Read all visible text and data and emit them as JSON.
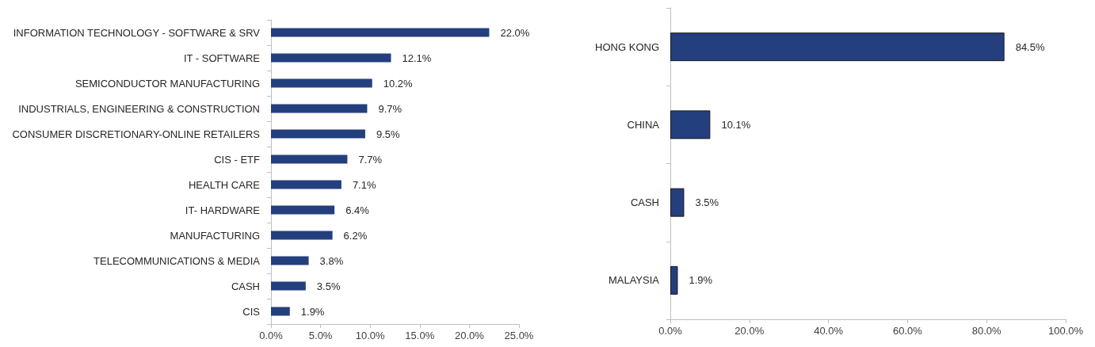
{
  "chart_data": [
    {
      "type": "bar",
      "orientation": "horizontal",
      "categories": [
        "INFORMATION TECHNOLOGY - SOFTWARE & SRV",
        "IT - SOFTWARE",
        "SEMICONDUCTOR MANUFACTURING",
        "INDUSTRIALS, ENGINEERING & CONSTRUCTION",
        "CONSUMER DISCRETIONARY-ONLINE RETAILERS",
        "CIS - ETF",
        "HEALTH CARE",
        "IT- HARDWARE",
        "MANUFACTURING",
        "TELECOMMUNICATIONS & MEDIA",
        "CASH",
        "CIS"
      ],
      "values": [
        22.0,
        12.1,
        10.2,
        9.7,
        9.5,
        7.7,
        7.1,
        6.4,
        6.2,
        3.8,
        3.5,
        1.9
      ],
      "value_labels": [
        "22.0%",
        "12.1%",
        "10.2%",
        "9.7%",
        "9.5%",
        "7.7%",
        "7.1%",
        "6.4%",
        "6.2%",
        "3.8%",
        "3.5%",
        "1.9%"
      ],
      "color": "#243f7e",
      "xlim": [
        0,
        25
      ],
      "xticks": [
        {
          "value": 0,
          "label": "0.0%"
        },
        {
          "value": 5,
          "label": "5.0%"
        },
        {
          "value": 10,
          "label": "10.0%"
        },
        {
          "value": 15,
          "label": "15.0%"
        },
        {
          "value": 20,
          "label": "20.0%"
        },
        {
          "value": 25,
          "label": "25.0%"
        }
      ],
      "grid": false
    },
    {
      "type": "bar",
      "orientation": "horizontal",
      "categories": [
        "HONG KONG",
        "CHINA",
        "CASH",
        "MALAYSIA"
      ],
      "values": [
        84.5,
        10.1,
        3.5,
        1.9
      ],
      "value_labels": [
        "84.5%",
        "10.1%",
        "3.5%",
        "1.9%"
      ],
      "color": "#243f7e",
      "xlim": [
        0,
        100
      ],
      "xticks": [
        {
          "value": 0,
          "label": "0.0%"
        },
        {
          "value": 20,
          "label": "20.0%"
        },
        {
          "value": 40,
          "label": "40.0%"
        },
        {
          "value": 60,
          "label": "60.0%"
        },
        {
          "value": 80,
          "label": "80.0%"
        },
        {
          "value": 100,
          "label": "100.0%"
        }
      ],
      "grid": false
    }
  ]
}
